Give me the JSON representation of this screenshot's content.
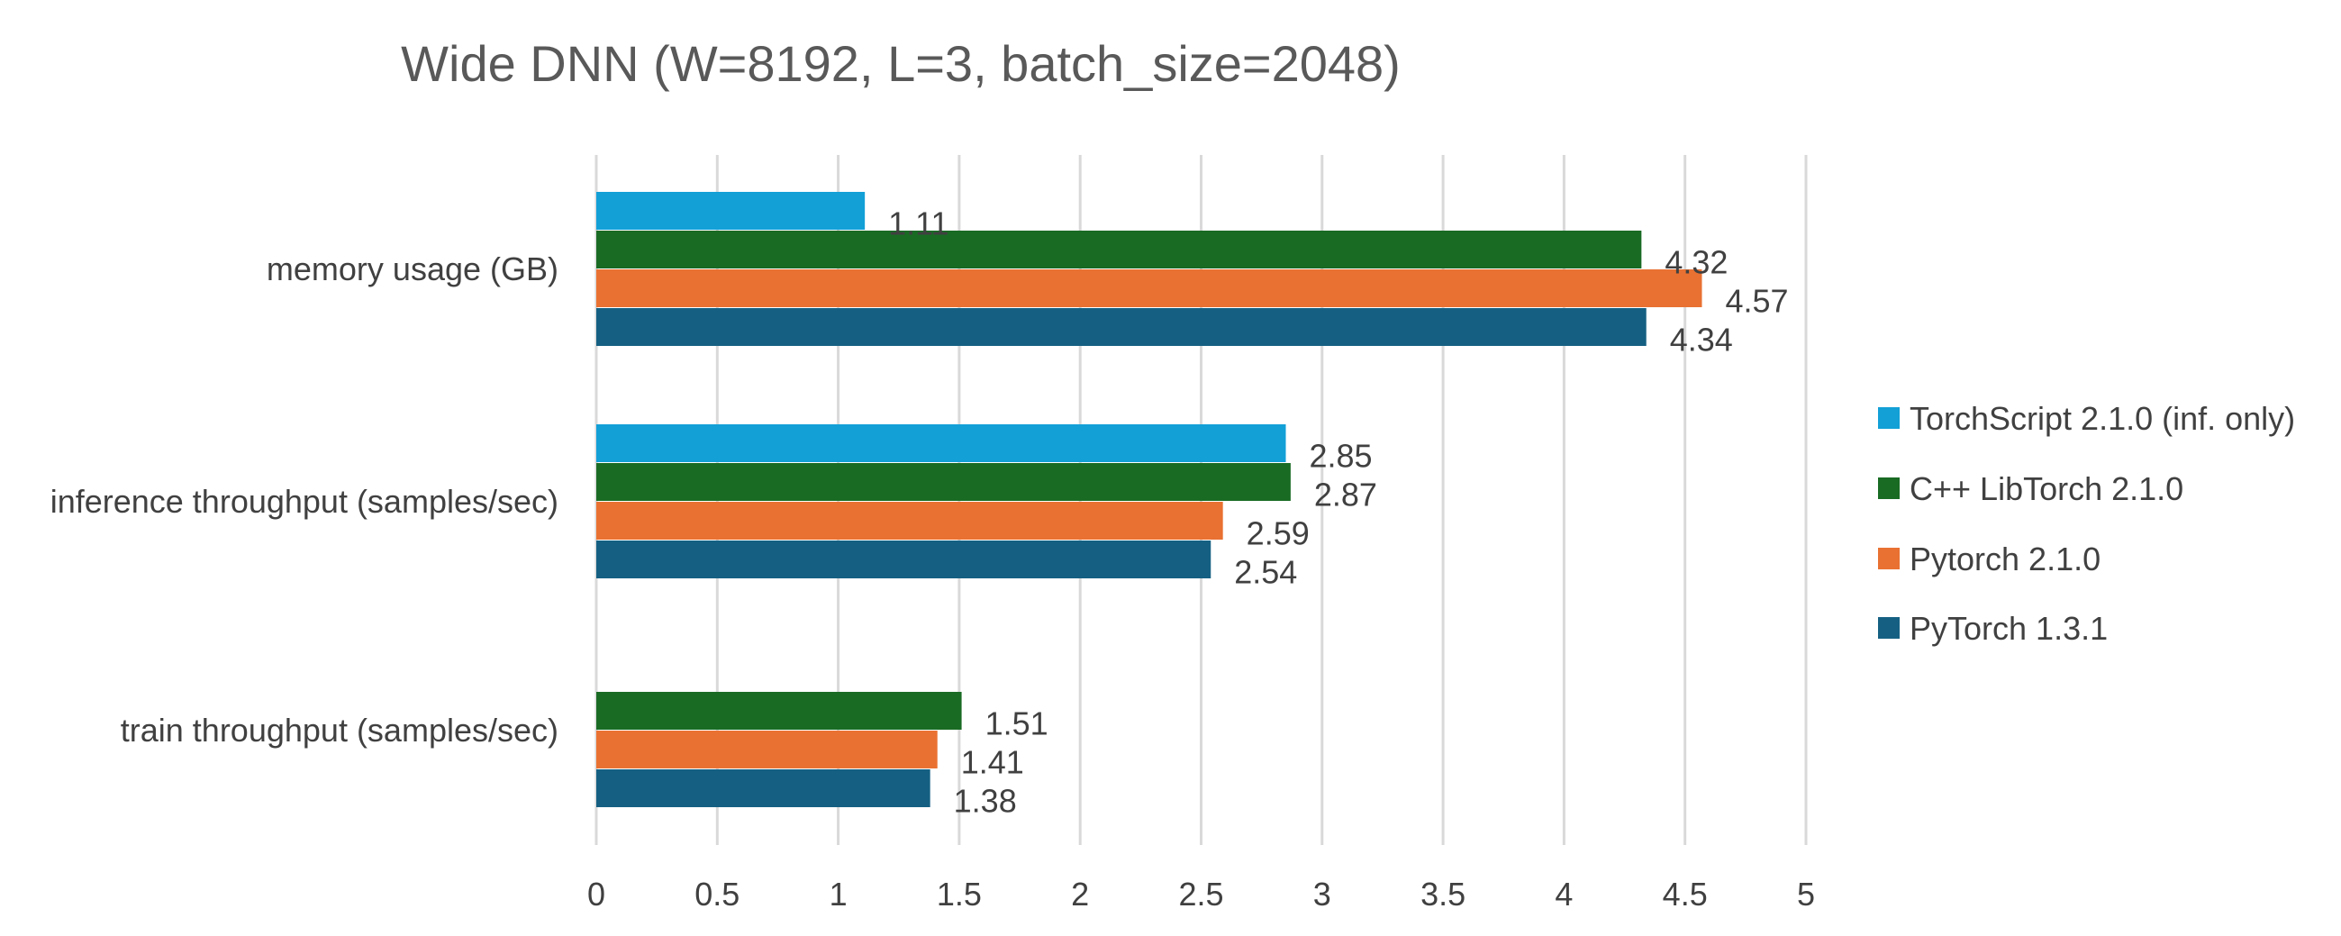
{
  "chart_data": {
    "type": "bar",
    "orientation": "horizontal",
    "title": "Wide DNN (W=8192, L=3, batch_size=2048)",
    "categories": [
      "memory usage (GB)",
      "inference throughput (samples/sec)",
      "train throughput (samples/sec)"
    ],
    "series": [
      {
        "name": "TorchScript 2.1.0 (inf. only)",
        "color": "#12A0D7",
        "values": [
          1.11,
          2.85,
          null
        ]
      },
      {
        "name": "C++ LibTorch 2.1.0",
        "color": "#196B24",
        "values": [
          4.32,
          2.87,
          1.51
        ]
      },
      {
        "name": "Pytorch 2.1.0",
        "color": "#E97132",
        "values": [
          4.57,
          2.59,
          1.41
        ]
      },
      {
        "name": "PyTorch 1.3.1",
        "color": "#156082",
        "values": [
          4.34,
          2.54,
          1.38
        ]
      }
    ],
    "x_ticks": [
      "0",
      "0.5",
      "1",
      "1.5",
      "2",
      "2.5",
      "3",
      "3.5",
      "4",
      "4.5",
      "5"
    ],
    "xlim": [
      0,
      5
    ],
    "grid": true,
    "legend_position": "right",
    "data_labels": true,
    "gridline_color": "#D9D9D9"
  }
}
